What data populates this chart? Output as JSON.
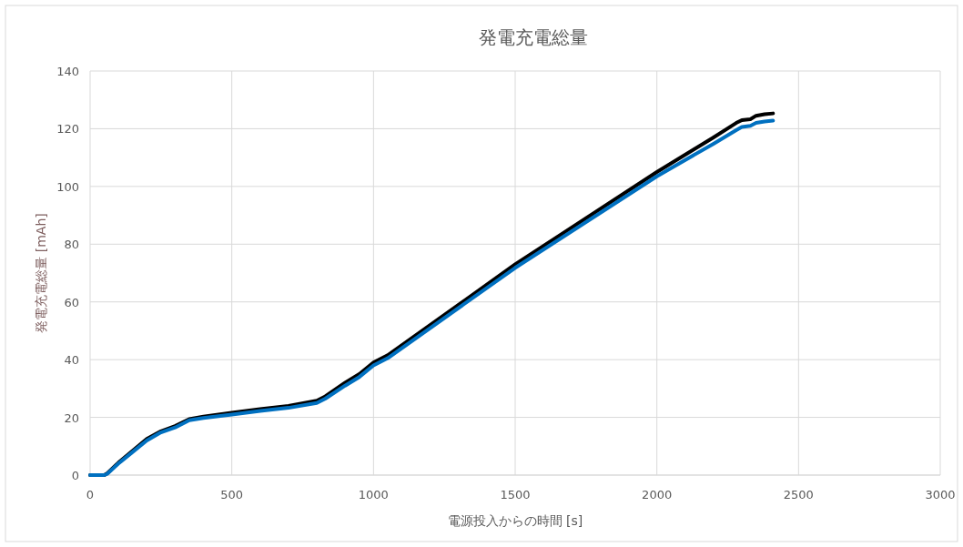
{
  "chart_data": {
    "type": "line",
    "title": "発電充電総量",
    "xlabel": "電源投入からの時間 [s]",
    "ylabel": "発電充電総量 [mAh]",
    "xlim": [
      0,
      3000
    ],
    "xticks": [
      0,
      500,
      1000,
      1500,
      2000,
      2500,
      3000
    ],
    "ylim": [
      0,
      140
    ],
    "yticks": [
      0,
      20,
      40,
      60,
      80,
      100,
      120,
      140
    ],
    "grid": true,
    "marker": "none",
    "line_style": "solid",
    "series": [
      {
        "color": "#000000",
        "x": [
          0,
          50,
          60,
          100,
          150,
          200,
          250,
          300,
          350,
          400,
          500,
          600,
          700,
          800,
          830,
          900,
          950,
          1000,
          1050,
          1500,
          2000,
          2200,
          2280,
          2300,
          2330,
          2350,
          2380,
          2410
        ],
        "values": [
          0,
          0,
          0.6,
          4.3,
          8.4,
          12.5,
          15.2,
          17,
          19.4,
          20.3,
          21.6,
          22.9,
          24,
          25.8,
          27.3,
          32,
          35,
          39,
          41.5,
          73,
          105,
          117,
          122,
          123,
          123.3,
          124.5,
          125,
          125.3
        ]
      },
      {
        "color": "#0070c0",
        "x": [
          0,
          50,
          60,
          100,
          150,
          200,
          250,
          300,
          350,
          400,
          500,
          600,
          700,
          800,
          830,
          900,
          950,
          1000,
          1050,
          1500,
          2000,
          2200,
          2280,
          2300,
          2330,
          2350,
          2380,
          2410
        ],
        "values": [
          0,
          0,
          0.4,
          4,
          8,
          12,
          14.8,
          16.5,
          19,
          19.8,
          21,
          22.2,
          23.3,
          25,
          26.5,
          31,
          34,
          38,
          40.5,
          71.8,
          103.5,
          114.8,
          119.5,
          120.6,
          121,
          122,
          122.5,
          122.8
        ]
      }
    ]
  }
}
